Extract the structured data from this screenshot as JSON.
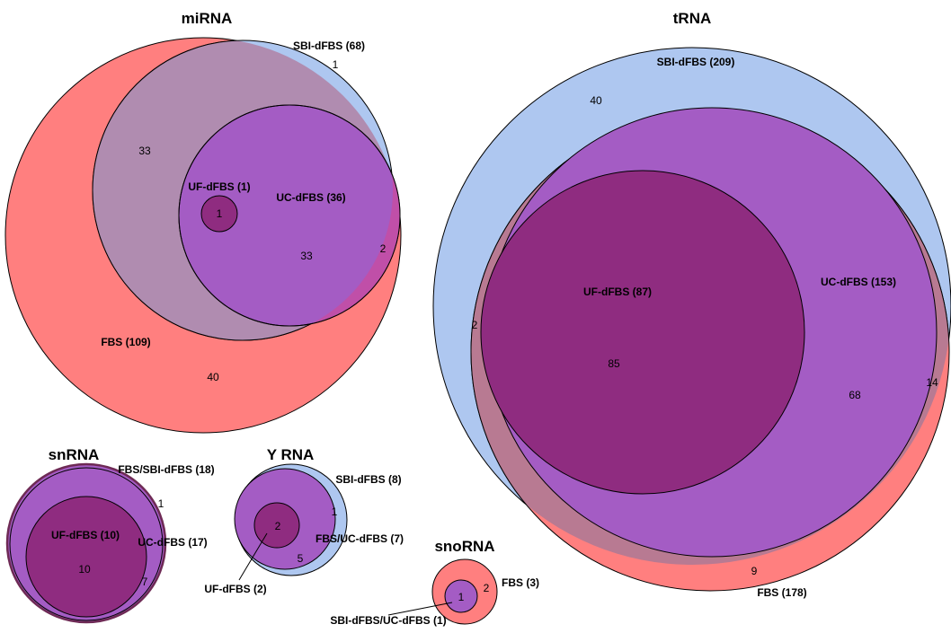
{
  "colors": {
    "fbs": "#ff7f7f",
    "sbi": "#aec7f0",
    "uc": "#a45cc4",
    "uf": "#8f2c80",
    "sbi_fbs_overlap": "#b08cb0",
    "fbs_sbi_outline": "#c06a7a"
  },
  "diagrams": [
    {
      "key": "mirna",
      "title": "miRNA",
      "sets": [
        {
          "name": "FBS (109)",
          "color": "fbs"
        },
        {
          "name": "SBI-dFBS (68)",
          "color": "sbi"
        },
        {
          "name": "UC-dFBS (36)",
          "color": "uc"
        },
        {
          "name": "UF-dFBS (1)",
          "color": "uf"
        }
      ],
      "counts": [
        "1",
        "33",
        "33",
        "2",
        "1",
        "40"
      ]
    },
    {
      "key": "trna",
      "title": "tRNA",
      "sets": [
        {
          "name": "SBI-dFBS (209)",
          "color": "sbi"
        },
        {
          "name": "FBS (178)",
          "color": "fbs"
        },
        {
          "name": "UC-dFBS (153)",
          "color": "uc"
        },
        {
          "name": "UF-dFBS (87)",
          "color": "uf"
        }
      ],
      "counts": [
        "40",
        "2",
        "85",
        "68",
        "14",
        "9"
      ]
    },
    {
      "key": "snrna",
      "title": "snRNA",
      "sets": [
        {
          "name": "FBS/SBI-dFBS (18)",
          "color": "fbs_sbi_outline"
        },
        {
          "name": "UC-dFBS (17)",
          "color": "uc"
        },
        {
          "name": "UF-dFBS (10)",
          "color": "uf"
        }
      ],
      "counts": [
        "1",
        "10",
        "7"
      ]
    },
    {
      "key": "yrna",
      "title": "Y RNA",
      "sets": [
        {
          "name": "SBI-dFBS (8)",
          "color": "sbi"
        },
        {
          "name": "FBS/UC-dFBS (7)",
          "color": "uc"
        },
        {
          "name": "UF-dFBS (2)",
          "color": "uf"
        }
      ],
      "counts": [
        "1",
        "2",
        "5"
      ]
    },
    {
      "key": "snorna",
      "title": "snoRNA",
      "sets": [
        {
          "name": "FBS (3)",
          "color": "fbs"
        },
        {
          "name": "SBI-dFBS/UC-dFBS (1)",
          "color": "uc"
        }
      ],
      "counts": [
        "2",
        "1"
      ]
    }
  ]
}
